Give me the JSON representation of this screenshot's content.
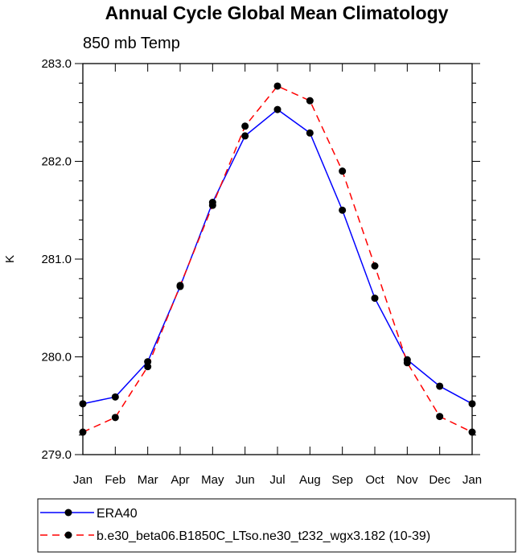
{
  "chart_data": {
    "type": "line",
    "title": "Annual Cycle Global Mean Climatology",
    "subtitle": "850 mb Temp",
    "xlabel": "",
    "ylabel": "K",
    "categories": [
      "Jan",
      "Feb",
      "Mar",
      "Apr",
      "May",
      "Jun",
      "Jul",
      "Aug",
      "Sep",
      "Oct",
      "Nov",
      "Dec",
      "Jan"
    ],
    "ylim": [
      279.0,
      283.0
    ],
    "yticks": [
      "279.0",
      "280.0",
      "281.0",
      "282.0",
      "283.0"
    ],
    "grid": false,
    "legend_position": "bottom",
    "series": [
      {
        "name": "ERA40",
        "color": "#0000ff",
        "line_style": "solid",
        "marker": "filled-circle",
        "values": [
          279.52,
          279.59,
          279.95,
          280.72,
          281.58,
          282.26,
          282.53,
          282.29,
          281.5,
          280.6,
          279.97,
          279.7,
          279.52
        ]
      },
      {
        "name": "b.e30_beta06.B1850C_LTso.ne30_t232_wgx3.182 (10-39)",
        "color": "#ff0000",
        "line_style": "dashed",
        "marker": "filled-circle",
        "values": [
          279.23,
          279.38,
          279.9,
          280.73,
          281.55,
          282.36,
          282.77,
          282.62,
          281.9,
          280.93,
          279.94,
          279.39,
          279.23
        ]
      }
    ]
  }
}
